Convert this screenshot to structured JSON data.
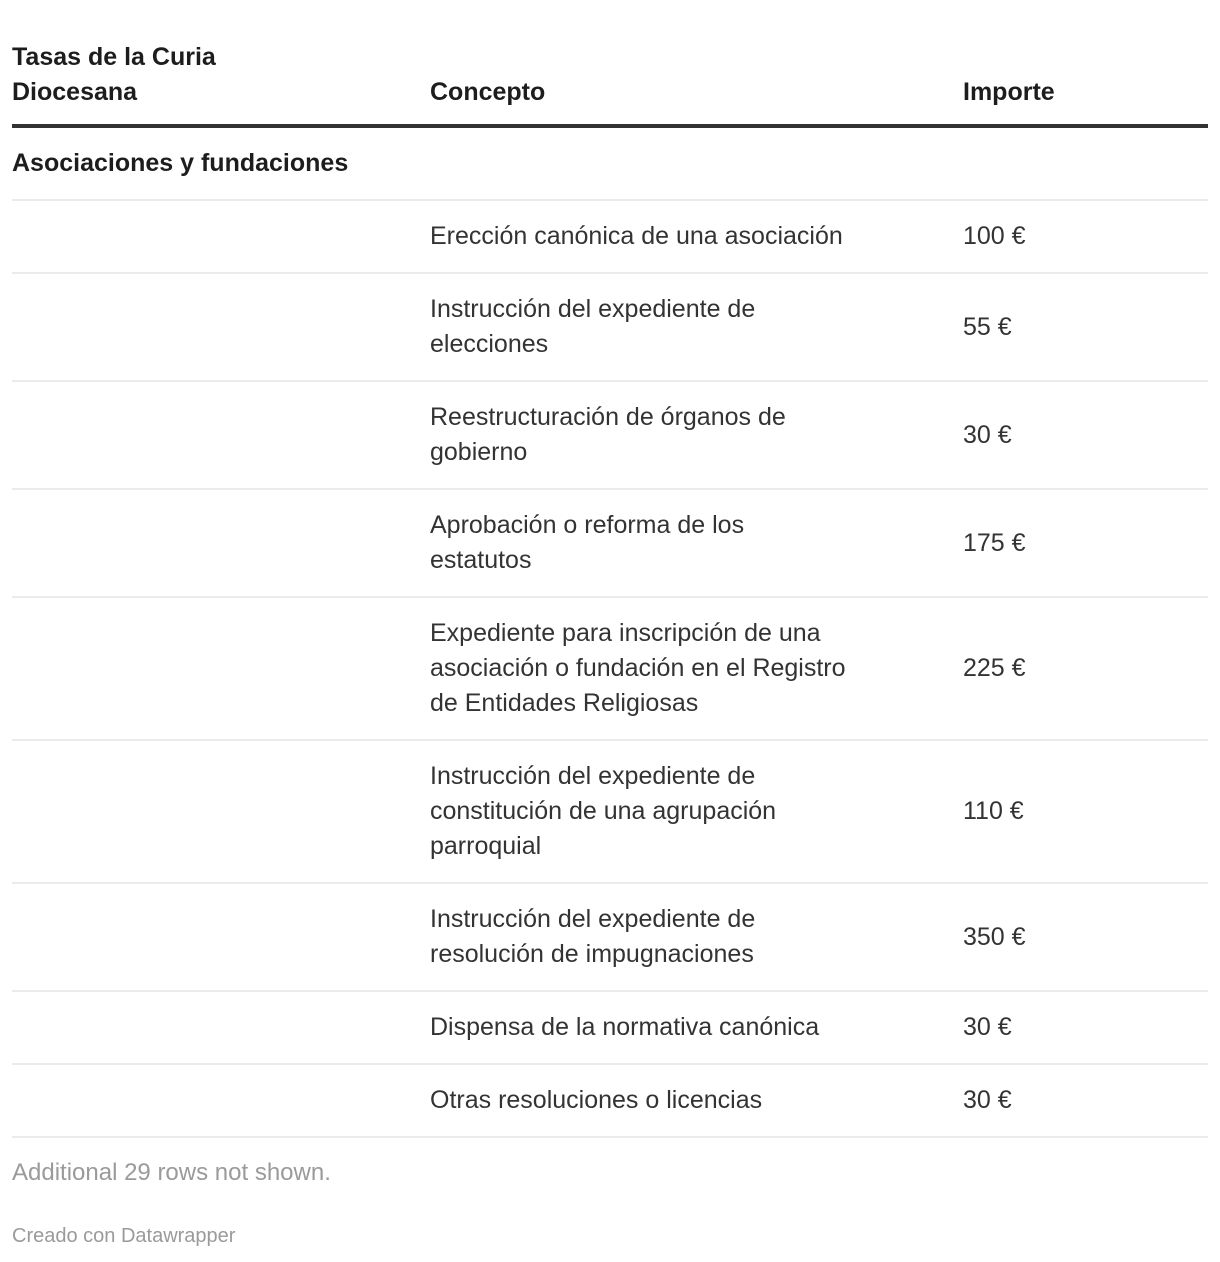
{
  "chart_data": {
    "type": "table",
    "title": "Tasas de la Curia Diocesana",
    "columns": [
      "Tasas de la Curia Diocesana",
      "Concepto",
      "Importe"
    ],
    "section": "Asociaciones y fundaciones",
    "rows": [
      {
        "concepto": "Erección canónica de una asociación",
        "importe": "100 €"
      },
      {
        "concepto": "Instrucción del expediente de\nelecciones",
        "importe": "55 €"
      },
      {
        "concepto": "Reestructuración de órganos de\ngobierno",
        "importe": "30 €"
      },
      {
        "concepto": "Aprobación o reforma de los\nestatutos",
        "importe": "175 €"
      },
      {
        "concepto": "Expediente para inscripción de una\nasociación o fundación en el Registro\nde Entidades Religiosas",
        "importe": "225 €"
      },
      {
        "concepto": "Instrucción del expediente de\nconstitución de una agrupación\nparroquial",
        "importe": "110 €"
      },
      {
        "concepto": "Instrucción del expediente de\nresolución de impugnaciones",
        "importe": "350 €"
      },
      {
        "concepto": "Dispensa de la normativa canónica",
        "importe": "30 €"
      },
      {
        "concepto": "Otras resoluciones o licencias",
        "importe": "30 €"
      }
    ],
    "layout": {
      "grid": "row dividers only",
      "header_border_color": "#333333",
      "row_border_color": "#ebebeb"
    }
  },
  "header": {
    "col1": "Tasas de la Curia\nDiocesana",
    "col2": "Concepto",
    "col3": "Importe"
  },
  "footer": {
    "note": "Additional 29 rows not shown.",
    "attribution": "Creado con Datawrapper"
  },
  "colors": {
    "heading_text": "#1d1d1d",
    "body_text": "#333333",
    "muted_text": "#9a9a9a",
    "header_border": "#333333",
    "row_border": "#ebebeb",
    "background": "#ffffff"
  }
}
